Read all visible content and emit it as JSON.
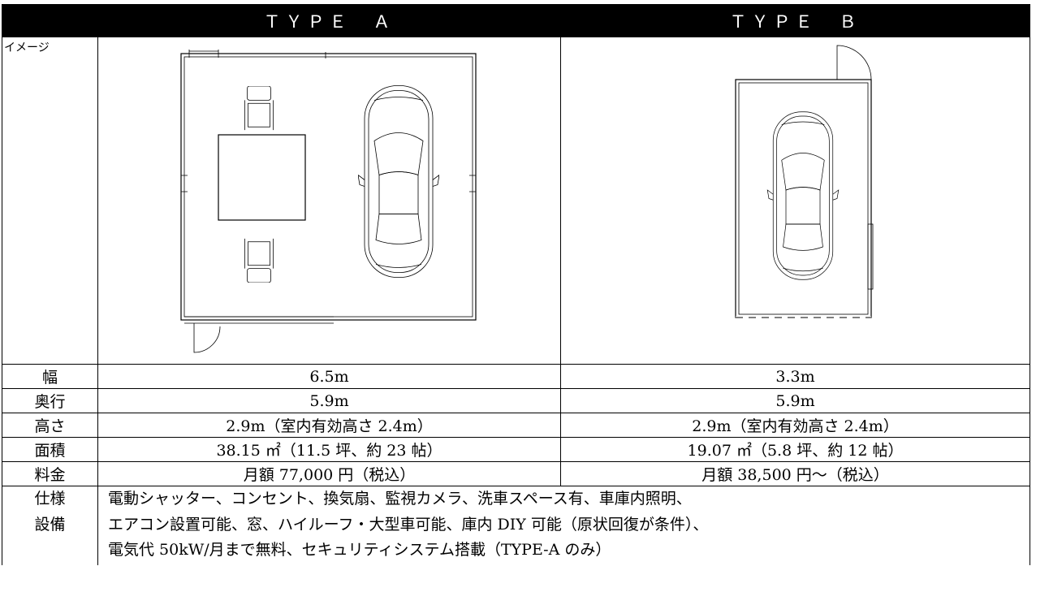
{
  "header": {
    "columns": [
      "ＴＹＰＥ　Ａ",
      "ＴＹＰＥ　Ｂ"
    ]
  },
  "image_row": {
    "label": "イメージ"
  },
  "rows": [
    {
      "label": "幅",
      "type_a": "6.5m",
      "type_b": "3.3m"
    },
    {
      "label": "奥行",
      "type_a": "5.9m",
      "type_b": "5.9m"
    },
    {
      "label": "高さ",
      "type_a": "2.9m（室内有効高さ 2.4m）",
      "type_b": "2.9m（室内有効高さ 2.4m）"
    },
    {
      "label": "面積",
      "type_a": "38.15 ㎡（11.5 坪、約 23 帖）",
      "type_b": "19.07 ㎡（5.8 坪、約 12 帖）"
    },
    {
      "label": "料金",
      "type_a": "月額 77,000 円（税込）",
      "type_b": "月額 38,500 円～（税込）"
    }
  ],
  "spec": {
    "label": [
      "仕様",
      "設備"
    ],
    "lines": [
      "電動シャッター、コンセント、換気扇、監視カメラ、洗車スペース有、車庫内照明、",
      "エアコン設置可能、窓、ハイルーフ・大型車可能、庫内 DIY 可能（原状回復が条件）、",
      "電気代 50kW/月まで無料、セキュリティシステム搭載（TYPE-A のみ）"
    ]
  }
}
